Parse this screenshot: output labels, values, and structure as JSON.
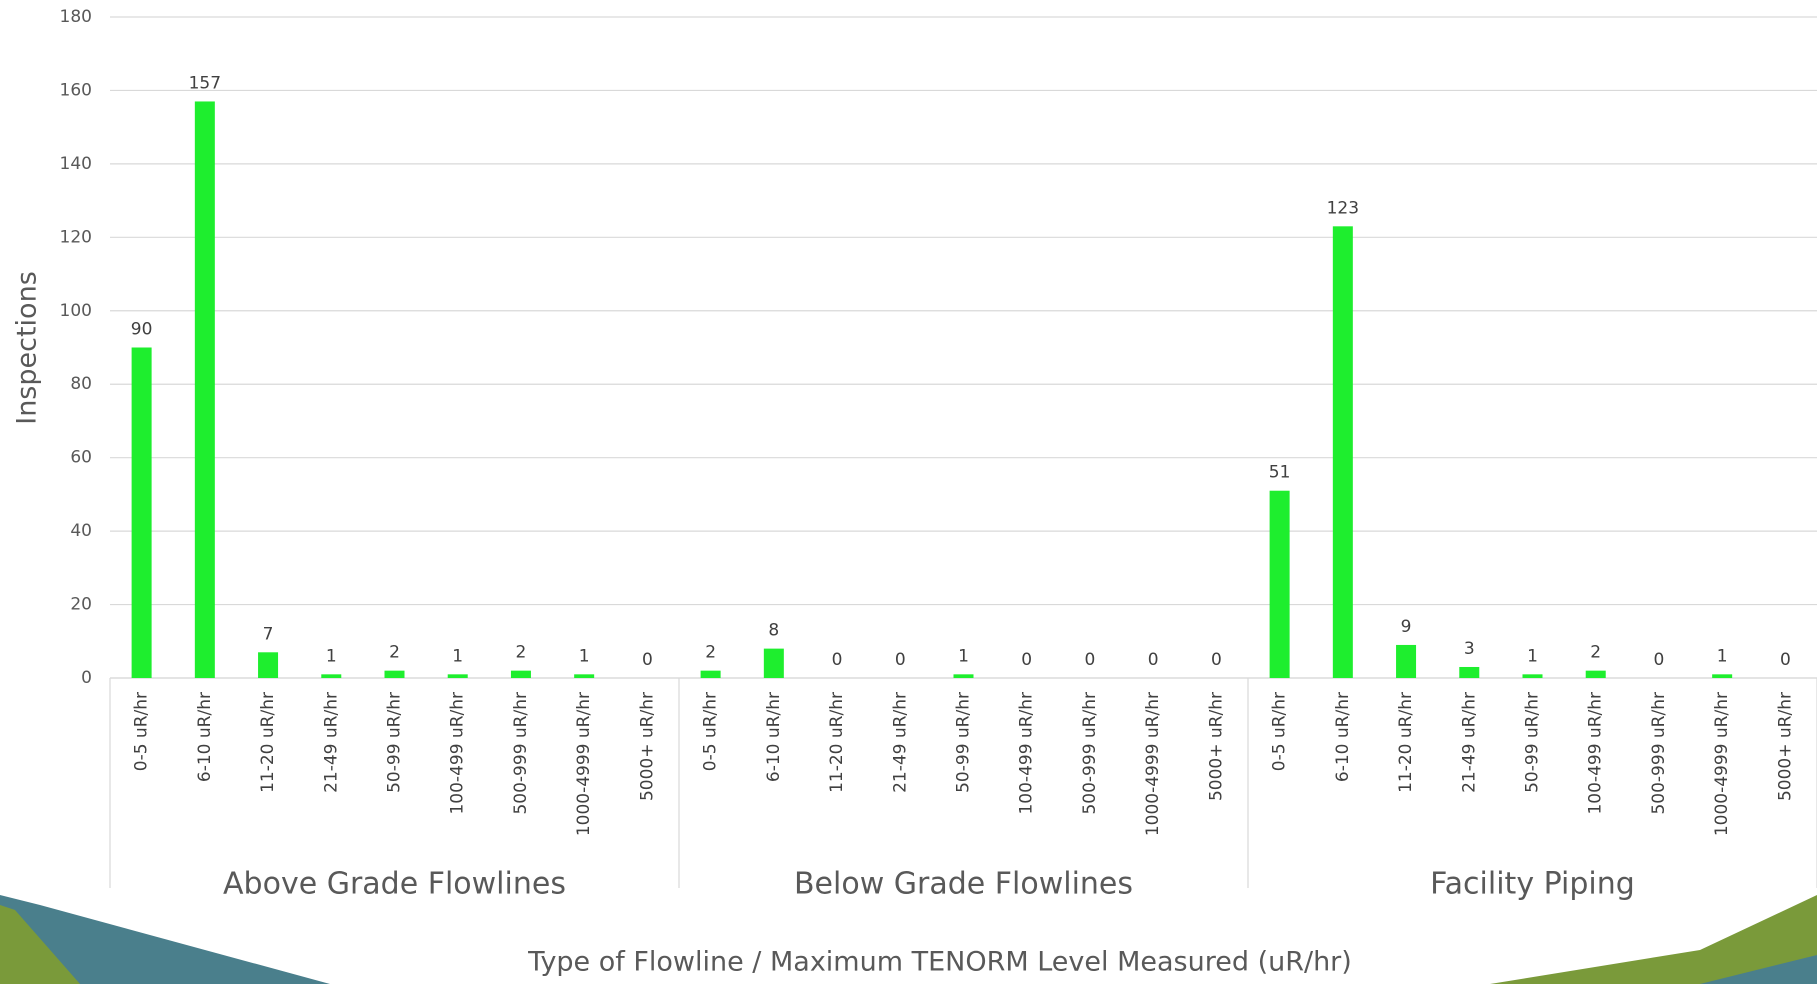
{
  "chart_data": {
    "type": "bar",
    "y_label": "Inspections",
    "x_label": "Type of Flowline / Maximum TENORM Level Measured (uR/hr)",
    "categories": [
      "0-5 uR/hr",
      "6-10 uR/hr",
      "11-20 uR/hr",
      "21-49 uR/hr",
      "50-99 uR/hr",
      "100-499 uR/hr",
      "500-999 uR/hr",
      "1000-4999 uR/hr",
      "5000+ uR/hr"
    ],
    "series": [
      {
        "name": "Above Grade Flowlines",
        "color": "#1eee2e",
        "values": [
          90,
          157,
          7,
          1,
          2,
          1,
          2,
          1,
          0
        ]
      },
      {
        "name": "Below Grade Flowlines",
        "color": "#1eee2e",
        "values": [
          2,
          8,
          0,
          0,
          1,
          0,
          0,
          0,
          0
        ]
      },
      {
        "name": "Facility Piping",
        "color": "#1eee2e",
        "values": [
          51,
          123,
          9,
          3,
          1,
          2,
          0,
          1,
          0
        ]
      }
    ],
    "ylim": [
      0,
      180
    ],
    "yticks": [
      0,
      20,
      40,
      60,
      80,
      100,
      120,
      140,
      160,
      180
    ],
    "grid": true
  }
}
